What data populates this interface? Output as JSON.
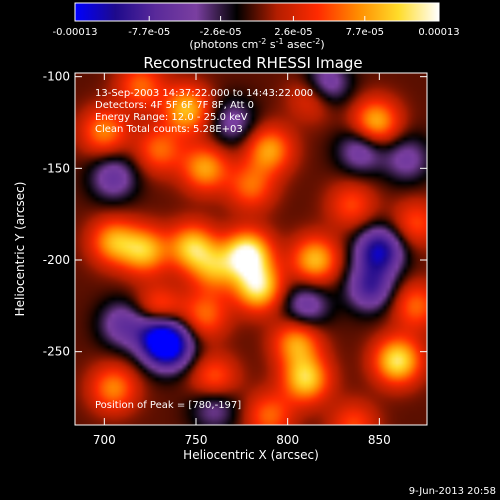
{
  "chart_data": {
    "type": "heatmap",
    "title": "Reconstructed RHESSI Image",
    "colorbar": {
      "min": -0.00013,
      "max": 0.00013,
      "tick_labels": [
        "-0.00013",
        "-7.7e-05",
        "-2.6e-05",
        "2.6e-05",
        "7.7e-05",
        "0.00013"
      ],
      "tick_values": [
        -0.00013,
        -7.7e-05,
        -2.6e-05,
        2.6e-05,
        7.7e-05,
        0.00013
      ],
      "units_text": "(photons cm",
      "units_sup1": "-2",
      "units_mid": " s",
      "units_sup2": "-1",
      "units_mid2": " asec",
      "units_sup3": "-2",
      "units_end": ")",
      "colormap": [
        "#0000ff",
        "#1e0a8c",
        "#5a2a9a",
        "#7a3fa0",
        "#000000",
        "#b41e00",
        "#ff2a00",
        "#ff8c00",
        "#ffdc2a",
        "#ffffff"
      ]
    },
    "xlabel": "Heliocentric X (arcsec)",
    "ylabel": "Heliocentric Y (arcsec)",
    "xlim": [
      684,
      876
    ],
    "ylim": [
      -290,
      -98
    ],
    "xticks": [
      700,
      750,
      800,
      850
    ],
    "yticks": [
      -100,
      -150,
      -200,
      -250
    ],
    "annotations": [
      "13-Sep-2003 14:37:22.000 to 14:43:22.000",
      "Detectors: 4F 5F 6F 7F 8F, Att 0",
      "Energy Range: 12.0 - 25.0 keV",
      "Clean    Total counts: 5.28E+03"
    ],
    "peak_label": "Position of Peak = [780,-197]",
    "peak": [
      780,
      -197
    ],
    "date_stamp": "9-Jun-2013 20:58",
    "sources": [
      {
        "x": 778,
        "y": -197,
        "v": 0.00013
      },
      {
        "x": 784,
        "y": -215,
        "v": 0.00011
      },
      {
        "x": 748,
        "y": -193,
        "v": 9.5e-05
      },
      {
        "x": 760,
        "y": -205,
        "v": 7e-05
      },
      {
        "x": 722,
        "y": -195,
        "v": 9e-05
      },
      {
        "x": 705,
        "y": -190,
        "v": 8e-05
      },
      {
        "x": 730,
        "y": -228,
        "v": 7e-05
      },
      {
        "x": 755,
        "y": -230,
        "v": 6e-05
      },
      {
        "x": 815,
        "y": -200,
        "v": 9e-05
      },
      {
        "x": 805,
        "y": -245,
        "v": 8e-05
      },
      {
        "x": 810,
        "y": -265,
        "v": 0.0001
      },
      {
        "x": 760,
        "y": -265,
        "v": 6e-05
      },
      {
        "x": 705,
        "y": -270,
        "v": 7e-05
      },
      {
        "x": 860,
        "y": -255,
        "v": 0.00011
      },
      {
        "x": 870,
        "y": -225,
        "v": 6e-05
      },
      {
        "x": 870,
        "y": -180,
        "v": 5e-05
      },
      {
        "x": 848,
        "y": -125,
        "v": 9e-05
      },
      {
        "x": 815,
        "y": -110,
        "v": 7e-05
      },
      {
        "x": 790,
        "y": -140,
        "v": 8e-05
      },
      {
        "x": 780,
        "y": -160,
        "v": 6e-05
      },
      {
        "x": 755,
        "y": -150,
        "v": 8e-05
      },
      {
        "x": 745,
        "y": -118,
        "v": 9e-05
      },
      {
        "x": 730,
        "y": -140,
        "v": 6e-05
      },
      {
        "x": 700,
        "y": -130,
        "v": 7e-05
      },
      {
        "x": 720,
        "y": -105,
        "v": 6e-05
      },
      {
        "x": 835,
        "y": -170,
        "v": 5e-05
      },
      {
        "x": 836,
        "y": -290,
        "v": 5e-05
      },
      {
        "x": 790,
        "y": -285,
        "v": 6e-05
      },
      {
        "x": 735,
        "y": -247,
        "v": -0.00013
      },
      {
        "x": 729,
        "y": -240,
        "v": -9e-05
      },
      {
        "x": 850,
        "y": -195,
        "v": -0.00011
      },
      {
        "x": 845,
        "y": -215,
        "v": -8e-05
      },
      {
        "x": 820,
        "y": -105,
        "v": -9e-05
      },
      {
        "x": 710,
        "y": -235,
        "v": -6e-05
      },
      {
        "x": 705,
        "y": -155,
        "v": -6e-05
      },
      {
        "x": 810,
        "y": -225,
        "v": -6e-05
      },
      {
        "x": 770,
        "y": -125,
        "v": -5e-05
      },
      {
        "x": 840,
        "y": -140,
        "v": -6e-05
      },
      {
        "x": 760,
        "y": -280,
        "v": -5e-05
      },
      {
        "x": 865,
        "y": -145,
        "v": -5e-05
      }
    ]
  }
}
